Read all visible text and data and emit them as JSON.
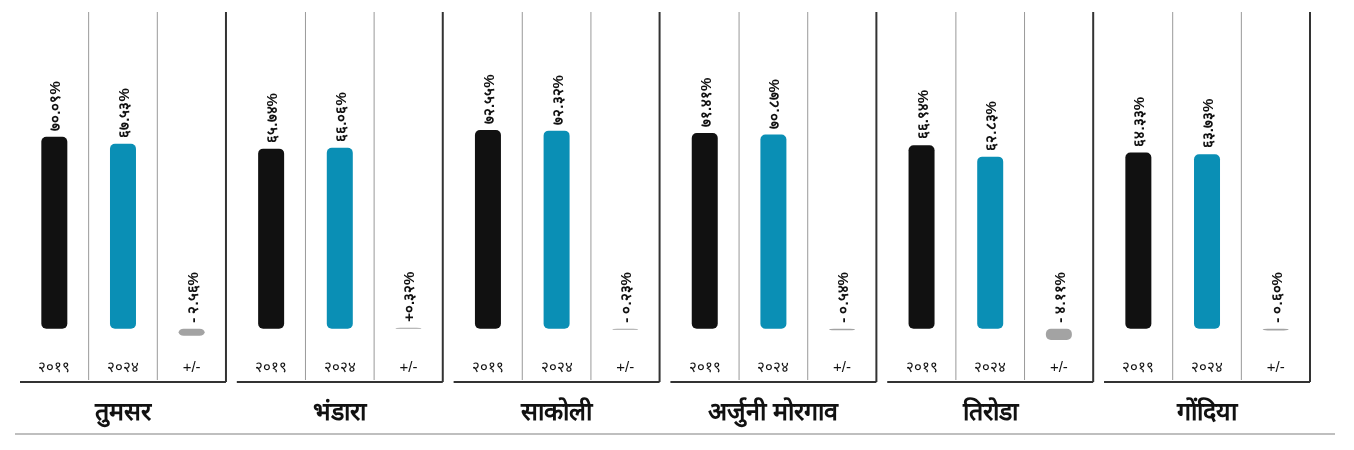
{
  "chart_data": {
    "type": "bar",
    "categories": [
      "तुमसर",
      "भंडारा",
      "साकोली",
      "अर्जुनी मोरगाव",
      "तिरोडा",
      "गोंदिया"
    ],
    "series": [
      {
        "name": "२०१९",
        "color": "#111111",
        "values": [
          70.09,
          65.74,
          72.55,
          71.41,
          66.94,
          64.33
        ],
        "value_labels": [
          "७०.०९%",
          "६५.७४%",
          "७२.५५%",
          "७१.४१%",
          "६६.९४%",
          "६४.३३%"
        ]
      },
      {
        "name": "२०२४",
        "color": "#0a8fb5",
        "values": [
          67.53,
          66.06,
          72.32,
          70.87,
          62.83,
          63.73
        ],
        "value_labels": [
          "६७.५३%",
          "६६.०६%",
          "७२.३२%",
          "७०.८७%",
          "६२.८३%",
          "६३.७३%"
        ]
      },
      {
        "name": "+/-",
        "color": "#a3a3a3",
        "values": [
          -2.56,
          0.32,
          -0.23,
          -0.54,
          -4.11,
          -0.6
        ],
        "value_labels": [
          "- २.५६%",
          "+०.३२%",
          "- ०.२३%",
          "- ०.५४%",
          "- ४.११%",
          "- ०.६०%"
        ]
      }
    ]
  }
}
